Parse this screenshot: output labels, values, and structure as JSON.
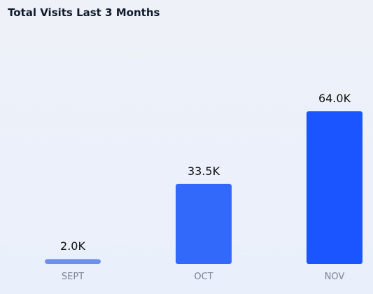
{
  "header": {
    "title": "Total Visits Last 3 Months"
  },
  "chart_data": {
    "type": "bar",
    "title": "Total Visits Last 3 Months",
    "categories": [
      "SEPT",
      "OCT",
      "NOV"
    ],
    "values": [
      2000,
      33500,
      64000
    ],
    "value_labels": [
      "2.0K",
      "33.5K",
      "64.0K"
    ],
    "xlabel": "",
    "ylabel": "",
    "ylim": [
      0,
      64000
    ],
    "grid": false,
    "legend": "none",
    "colors": [
      "#6f8ff0",
      "#3369fb",
      "#1a55ff"
    ]
  }
}
